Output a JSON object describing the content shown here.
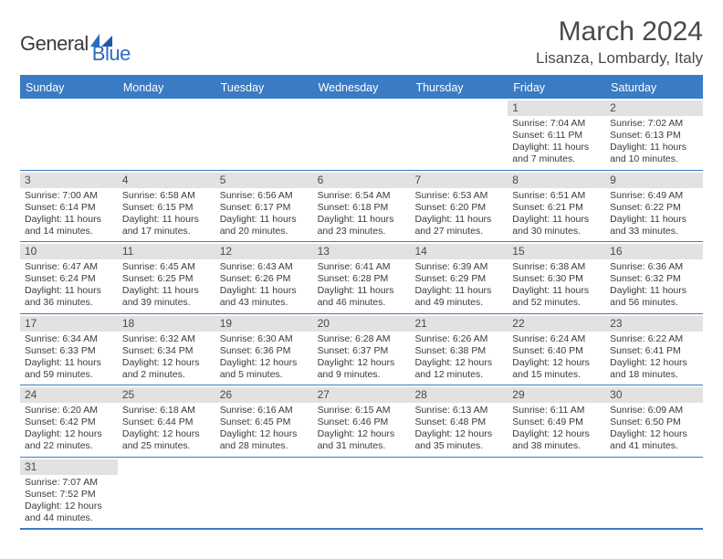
{
  "logo": {
    "text1": "General",
    "text2": "Blue"
  },
  "title": "March 2024",
  "location": "Lisanza, Lombardy, Italy",
  "colors": {
    "header_blue": "#3b7bc4",
    "band_gray": "#e2e2e2",
    "text": "#3a3a3a",
    "logo_blue": "#2d6bbf"
  },
  "dayHeaders": [
    "Sunday",
    "Monday",
    "Tuesday",
    "Wednesday",
    "Thursday",
    "Friday",
    "Saturday"
  ],
  "weeks": [
    [
      {
        "n": "",
        "sr": "",
        "ss": "",
        "dl": ""
      },
      {
        "n": "",
        "sr": "",
        "ss": "",
        "dl": ""
      },
      {
        "n": "",
        "sr": "",
        "ss": "",
        "dl": ""
      },
      {
        "n": "",
        "sr": "",
        "ss": "",
        "dl": ""
      },
      {
        "n": "",
        "sr": "",
        "ss": "",
        "dl": ""
      },
      {
        "n": "1",
        "sr": "Sunrise: 7:04 AM",
        "ss": "Sunset: 6:11 PM",
        "dl": "Daylight: 11 hours and 7 minutes."
      },
      {
        "n": "2",
        "sr": "Sunrise: 7:02 AM",
        "ss": "Sunset: 6:13 PM",
        "dl": "Daylight: 11 hours and 10 minutes."
      }
    ],
    [
      {
        "n": "3",
        "sr": "Sunrise: 7:00 AM",
        "ss": "Sunset: 6:14 PM",
        "dl": "Daylight: 11 hours and 14 minutes."
      },
      {
        "n": "4",
        "sr": "Sunrise: 6:58 AM",
        "ss": "Sunset: 6:15 PM",
        "dl": "Daylight: 11 hours and 17 minutes."
      },
      {
        "n": "5",
        "sr": "Sunrise: 6:56 AM",
        "ss": "Sunset: 6:17 PM",
        "dl": "Daylight: 11 hours and 20 minutes."
      },
      {
        "n": "6",
        "sr": "Sunrise: 6:54 AM",
        "ss": "Sunset: 6:18 PM",
        "dl": "Daylight: 11 hours and 23 minutes."
      },
      {
        "n": "7",
        "sr": "Sunrise: 6:53 AM",
        "ss": "Sunset: 6:20 PM",
        "dl": "Daylight: 11 hours and 27 minutes."
      },
      {
        "n": "8",
        "sr": "Sunrise: 6:51 AM",
        "ss": "Sunset: 6:21 PM",
        "dl": "Daylight: 11 hours and 30 minutes."
      },
      {
        "n": "9",
        "sr": "Sunrise: 6:49 AM",
        "ss": "Sunset: 6:22 PM",
        "dl": "Daylight: 11 hours and 33 minutes."
      }
    ],
    [
      {
        "n": "10",
        "sr": "Sunrise: 6:47 AM",
        "ss": "Sunset: 6:24 PM",
        "dl": "Daylight: 11 hours and 36 minutes."
      },
      {
        "n": "11",
        "sr": "Sunrise: 6:45 AM",
        "ss": "Sunset: 6:25 PM",
        "dl": "Daylight: 11 hours and 39 minutes."
      },
      {
        "n": "12",
        "sr": "Sunrise: 6:43 AM",
        "ss": "Sunset: 6:26 PM",
        "dl": "Daylight: 11 hours and 43 minutes."
      },
      {
        "n": "13",
        "sr": "Sunrise: 6:41 AM",
        "ss": "Sunset: 6:28 PM",
        "dl": "Daylight: 11 hours and 46 minutes."
      },
      {
        "n": "14",
        "sr": "Sunrise: 6:39 AM",
        "ss": "Sunset: 6:29 PM",
        "dl": "Daylight: 11 hours and 49 minutes."
      },
      {
        "n": "15",
        "sr": "Sunrise: 6:38 AM",
        "ss": "Sunset: 6:30 PM",
        "dl": "Daylight: 11 hours and 52 minutes."
      },
      {
        "n": "16",
        "sr": "Sunrise: 6:36 AM",
        "ss": "Sunset: 6:32 PM",
        "dl": "Daylight: 11 hours and 56 minutes."
      }
    ],
    [
      {
        "n": "17",
        "sr": "Sunrise: 6:34 AM",
        "ss": "Sunset: 6:33 PM",
        "dl": "Daylight: 11 hours and 59 minutes."
      },
      {
        "n": "18",
        "sr": "Sunrise: 6:32 AM",
        "ss": "Sunset: 6:34 PM",
        "dl": "Daylight: 12 hours and 2 minutes."
      },
      {
        "n": "19",
        "sr": "Sunrise: 6:30 AM",
        "ss": "Sunset: 6:36 PM",
        "dl": "Daylight: 12 hours and 5 minutes."
      },
      {
        "n": "20",
        "sr": "Sunrise: 6:28 AM",
        "ss": "Sunset: 6:37 PM",
        "dl": "Daylight: 12 hours and 9 minutes."
      },
      {
        "n": "21",
        "sr": "Sunrise: 6:26 AM",
        "ss": "Sunset: 6:38 PM",
        "dl": "Daylight: 12 hours and 12 minutes."
      },
      {
        "n": "22",
        "sr": "Sunrise: 6:24 AM",
        "ss": "Sunset: 6:40 PM",
        "dl": "Daylight: 12 hours and 15 minutes."
      },
      {
        "n": "23",
        "sr": "Sunrise: 6:22 AM",
        "ss": "Sunset: 6:41 PM",
        "dl": "Daylight: 12 hours and 18 minutes."
      }
    ],
    [
      {
        "n": "24",
        "sr": "Sunrise: 6:20 AM",
        "ss": "Sunset: 6:42 PM",
        "dl": "Daylight: 12 hours and 22 minutes."
      },
      {
        "n": "25",
        "sr": "Sunrise: 6:18 AM",
        "ss": "Sunset: 6:44 PM",
        "dl": "Daylight: 12 hours and 25 minutes."
      },
      {
        "n": "26",
        "sr": "Sunrise: 6:16 AM",
        "ss": "Sunset: 6:45 PM",
        "dl": "Daylight: 12 hours and 28 minutes."
      },
      {
        "n": "27",
        "sr": "Sunrise: 6:15 AM",
        "ss": "Sunset: 6:46 PM",
        "dl": "Daylight: 12 hours and 31 minutes."
      },
      {
        "n": "28",
        "sr": "Sunrise: 6:13 AM",
        "ss": "Sunset: 6:48 PM",
        "dl": "Daylight: 12 hours and 35 minutes."
      },
      {
        "n": "29",
        "sr": "Sunrise: 6:11 AM",
        "ss": "Sunset: 6:49 PM",
        "dl": "Daylight: 12 hours and 38 minutes."
      },
      {
        "n": "30",
        "sr": "Sunrise: 6:09 AM",
        "ss": "Sunset: 6:50 PM",
        "dl": "Daylight: 12 hours and 41 minutes."
      }
    ],
    [
      {
        "n": "31",
        "sr": "Sunrise: 7:07 AM",
        "ss": "Sunset: 7:52 PM",
        "dl": "Daylight: 12 hours and 44 minutes."
      },
      {
        "n": "",
        "sr": "",
        "ss": "",
        "dl": ""
      },
      {
        "n": "",
        "sr": "",
        "ss": "",
        "dl": ""
      },
      {
        "n": "",
        "sr": "",
        "ss": "",
        "dl": ""
      },
      {
        "n": "",
        "sr": "",
        "ss": "",
        "dl": ""
      },
      {
        "n": "",
        "sr": "",
        "ss": "",
        "dl": ""
      },
      {
        "n": "",
        "sr": "",
        "ss": "",
        "dl": ""
      }
    ]
  ]
}
